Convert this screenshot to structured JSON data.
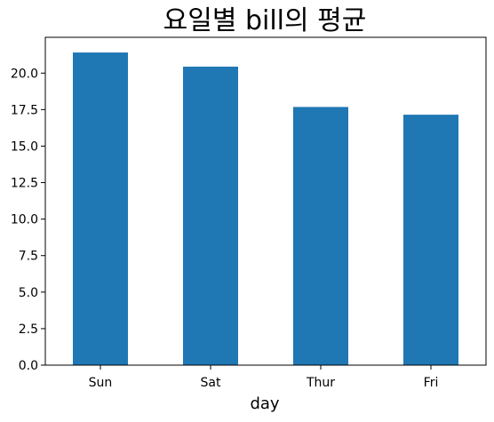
{
  "chart_data": {
    "type": "bar",
    "title": "요일별 bill의 평균",
    "xlabel": "day",
    "ylabel": "",
    "categories": [
      "Sun",
      "Sat",
      "Thur",
      "Fri"
    ],
    "values": [
      21.41,
      20.44,
      17.68,
      17.15
    ],
    "ylim": [
      0,
      22.45
    ],
    "yticks": [
      "0.0",
      "2.5",
      "5.0",
      "7.5",
      "10.0",
      "12.5",
      "15.0",
      "17.5",
      "20.0"
    ],
    "ytick_values": [
      0,
      2.5,
      5,
      7.5,
      10,
      12.5,
      15,
      17.5,
      20
    ],
    "bar_color": "#1f77b4",
    "grid": false,
    "legend": "none"
  }
}
